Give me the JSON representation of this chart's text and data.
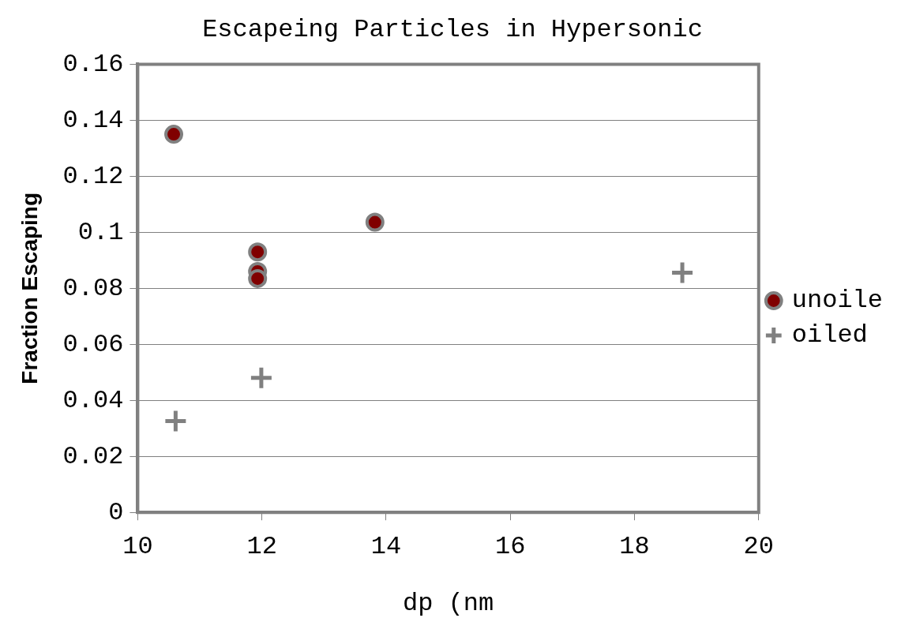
{
  "chart_data": {
    "type": "scatter",
    "title": "Escapeing Particles in Hypersonic",
    "xlabel": "dp (nm",
    "ylabel": "Fraction Escaping",
    "series": [
      {
        "name": "unoile",
        "color": "#800000",
        "marker": "circle",
        "x": [
          10.58,
          11.93,
          11.93,
          11.93,
          13.82
        ],
        "values": [
          0.135,
          0.093,
          0.086,
          0.0835,
          0.1036
        ]
      },
      {
        "name": "oiled",
        "color": "#808080",
        "marker": "cross",
        "x": [
          10.61,
          11.99,
          18.77
        ],
        "values": [
          0.0326,
          0.048,
          0.0856
        ]
      }
    ],
    "xlim": [
      10,
      20
    ],
    "xticks": [
      10,
      12,
      14,
      16,
      18,
      20
    ],
    "ylim": [
      0,
      0.16
    ],
    "yticks": [
      0,
      0.02,
      0.04,
      0.06,
      0.08,
      0.1,
      0.12,
      0.14,
      0.16
    ],
    "grid": "y",
    "legend": "right"
  }
}
